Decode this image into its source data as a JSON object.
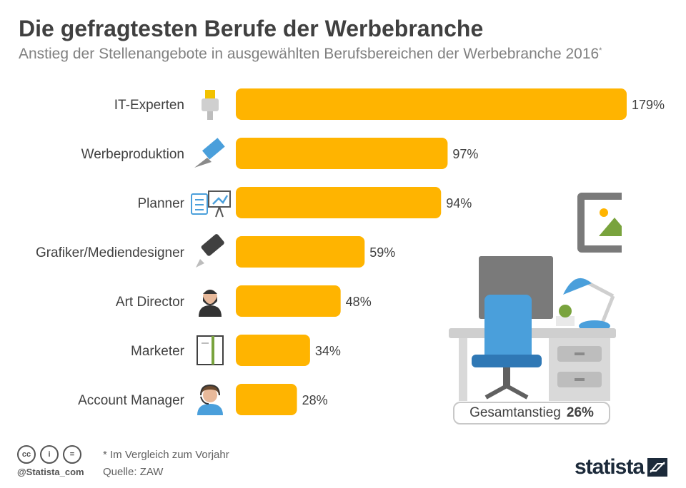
{
  "title": "Die gefragtesten Berufe der Werbebranche",
  "subtitle": "Anstieg der Stellenangebote in ausgewählten Berufsbereichen der Werbebranche 2016",
  "subtitle_marker": "*",
  "chart_data": {
    "type": "bar",
    "orientation": "horizontal",
    "categories": [
      "IT-Experten",
      "Werbeproduktion",
      "Planner",
      "Grafiker/Mediendesigner",
      "Art Director",
      "Marketer",
      "Account Manager"
    ],
    "values": [
      179,
      97,
      94,
      59,
      48,
      34,
      28
    ],
    "value_labels": [
      "179%",
      "97%",
      "94%",
      "59%",
      "48%",
      "34%",
      "28%"
    ],
    "icons": [
      "network-cable-icon",
      "pen-icon",
      "planner-board-icon",
      "marker-icon",
      "bearded-person-icon",
      "notebook-icon",
      "headset-person-icon"
    ],
    "bar_color": "#FFB400",
    "xlim": [
      0,
      179
    ],
    "grid": false
  },
  "total": {
    "label": "Gesamtanstieg",
    "value": "26%"
  },
  "footnote": "* Im Vergleich zum Vorjahr",
  "source": "Quelle: ZAW",
  "handle": "@Statista_com",
  "brand": "statista",
  "license_icons": [
    "cc-icon",
    "attribution-icon",
    "no-derivatives-icon"
  ],
  "license_glyphs": [
    "cc",
    "i",
    "="
  ],
  "colors": {
    "title": "#404040",
    "subtitle": "#808080",
    "bar": "#FFB400",
    "brand": "#1c2a3a"
  }
}
